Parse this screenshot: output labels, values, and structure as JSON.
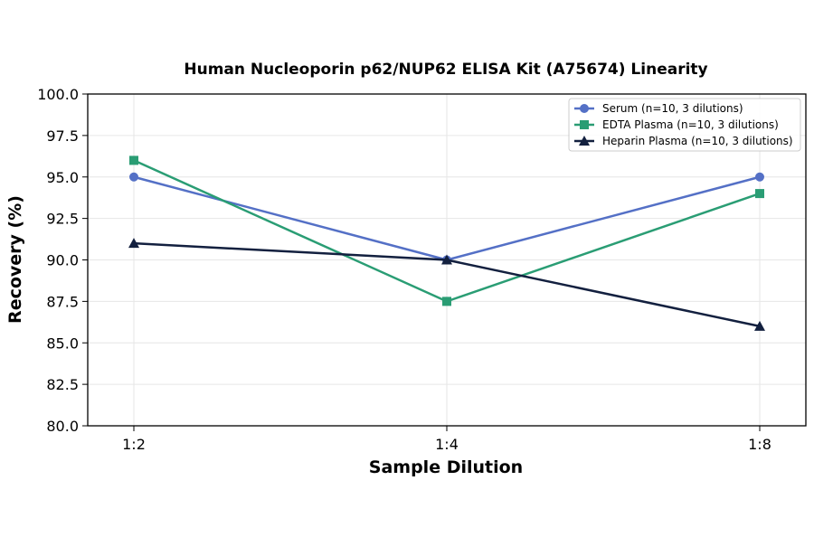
{
  "chart_data": {
    "type": "line",
    "title": "Human Nucleoporin p62/NUP62 ELISA Kit (A75674) Linearity",
    "xlabel": "Sample Dilution",
    "ylabel": "Recovery (%)",
    "categories": [
      "1:2",
      "1:4",
      "1:8"
    ],
    "ylim": [
      80,
      100
    ],
    "yticks": [
      80.0,
      82.5,
      85.0,
      87.5,
      90.0,
      92.5,
      95.0,
      97.5,
      100.0
    ],
    "grid": true,
    "legend_position": "top-right",
    "series": [
      {
        "name": "Serum (n=10, 3 dilutions)",
        "values": [
          95,
          90,
          95
        ],
        "color": "#5470c6",
        "marker": "circle"
      },
      {
        "name": "EDTA Plasma (n=10, 3 dilutions)",
        "values": [
          96,
          87.5,
          94
        ],
        "color": "#2a9d74",
        "marker": "square"
      },
      {
        "name": "Heparin Plasma (n=10, 3 dilutions)",
        "values": [
          91,
          90,
          86
        ],
        "color": "#13203f",
        "marker": "triangle"
      }
    ]
  }
}
